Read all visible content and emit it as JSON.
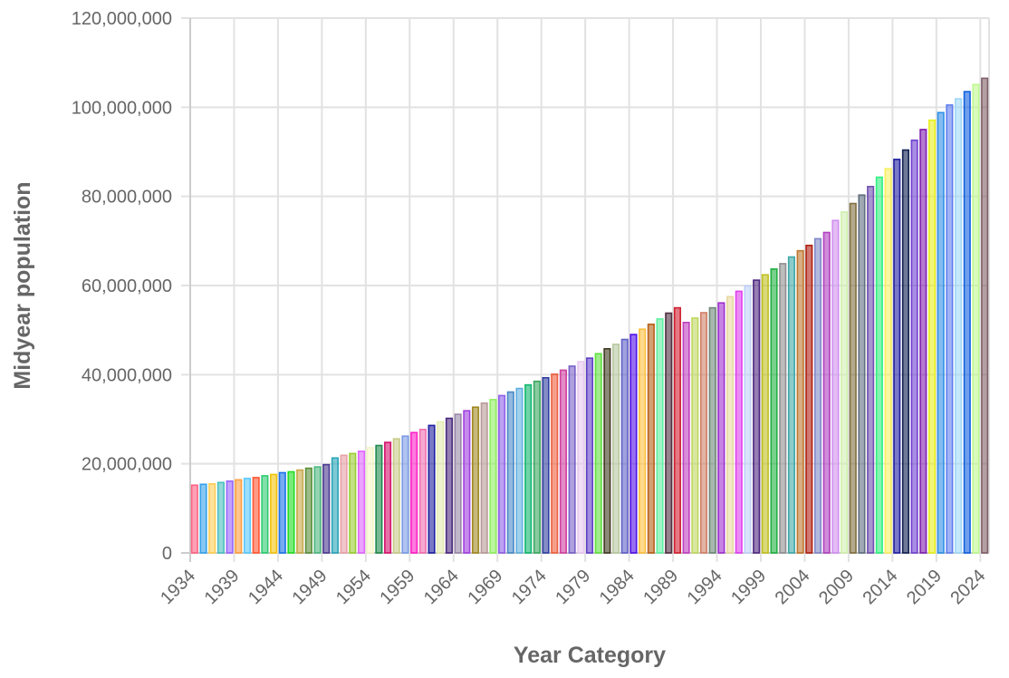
{
  "chart_data": {
    "type": "bar",
    "title": "",
    "xlabel": "Year Category",
    "ylabel": "Midyear population",
    "ylim": [
      0,
      120000000
    ],
    "y_ticks": [
      0,
      20000000,
      40000000,
      60000000,
      80000000,
      100000000,
      120000000
    ],
    "x_tick_every": 5,
    "grid": true,
    "legend": "none",
    "categories": [
      1934,
      1935,
      1936,
      1937,
      1938,
      1939,
      1940,
      1941,
      1942,
      1943,
      1944,
      1945,
      1946,
      1947,
      1948,
      1949,
      1950,
      1951,
      1952,
      1953,
      1954,
      1955,
      1956,
      1957,
      1958,
      1959,
      1960,
      1961,
      1962,
      1963,
      1964,
      1965,
      1966,
      1967,
      1968,
      1969,
      1970,
      1971,
      1972,
      1973,
      1974,
      1975,
      1976,
      1977,
      1978,
      1979,
      1980,
      1981,
      1982,
      1983,
      1984,
      1985,
      1986,
      1987,
      1988,
      1989,
      1990,
      1991,
      1992,
      1993,
      1994,
      1995,
      1996,
      1997,
      1998,
      1999,
      2000,
      2001,
      2002,
      2003,
      2004,
      2005,
      2006,
      2007,
      2008,
      2009,
      2010,
      2011,
      2012,
      2013,
      2014,
      2015,
      2016,
      2017,
      2018,
      2019,
      2020,
      2021,
      2022,
      2023,
      2024
    ],
    "values": [
      15200000,
      15400000,
      15500000,
      15800000,
      16100000,
      16400000,
      16700000,
      16900000,
      17300000,
      17600000,
      18000000,
      18200000,
      18600000,
      19000000,
      19300000,
      19800000,
      21300000,
      21900000,
      22300000,
      22800000,
      23600000,
      24100000,
      24800000,
      25600000,
      26200000,
      27000000,
      27700000,
      28600000,
      29400000,
      30200000,
      31100000,
      31900000,
      32700000,
      33600000,
      34400000,
      35300000,
      36100000,
      36900000,
      37700000,
      38500000,
      39300000,
      40100000,
      41000000,
      41900000,
      42900000,
      43700000,
      44700000,
      45800000,
      46800000,
      47900000,
      49000000,
      50200000,
      51300000,
      52500000,
      53800000,
      55000000,
      51700000,
      52700000,
      53900000,
      55000000,
      56100000,
      57500000,
      58700000,
      59900000,
      61200000,
      62400000,
      63700000,
      64900000,
      66400000,
      67800000,
      69000000,
      70500000,
      71900000,
      74600000,
      76500000,
      78400000,
      80300000,
      82200000,
      84300000,
      86200000,
      88300000,
      90400000,
      92600000,
      95000000,
      97100000,
      98800000,
      100500000,
      101900000,
      103500000,
      105100000,
      106500000
    ],
    "colors": [
      "#ff6384",
      "#36a2eb",
      "#ffcd56",
      "#4bc0c0",
      "#9966ff",
      "#ff9f40",
      "#5ac8fa",
      "#ff5733",
      "#2ecc71",
      "#f1c40f",
      "#1a73e8",
      "#22dd22",
      "#c9a94b",
      "#5a8f3a",
      "#4cb87f",
      "#4b3b8f",
      "#2aa5b8",
      "#e8a0a8",
      "#9acd32",
      "#e066ff",
      "#f5f5c8",
      "#1f8a4c",
      "#d4146e",
      "#c8cc88",
      "#7b9be8",
      "#ff1fc8",
      "#f070b0",
      "#2020a0",
      "#e4eab0",
      "#4b2a80",
      "#9a88a8",
      "#a040e0",
      "#a08820",
      "#b89a98",
      "#90ee60",
      "#9060e8",
      "#4a8ac8",
      "#60b0e0",
      "#10b870",
      "#3aa860",
      "#3040a0",
      "#ee6040",
      "#d040a0",
      "#7860c8",
      "#e8c8f0",
      "#6040c8",
      "#60e040",
      "#403a20",
      "#b8c8a0",
      "#6060c8",
      "#5010e8",
      "#ffc040",
      "#b86018",
      "#60f0a0",
      "#503040",
      "#d02030",
      "#c040c0",
      "#c0d860",
      "#d08068",
      "#708878",
      "#a030d0",
      "#e8d8a0",
      "#e040f0",
      "#c0d0f8",
      "#502880",
      "#c0c020",
      "#20b040",
      "#909090",
      "#40a8a8",
      "#c07830",
      "#b02010",
      "#8088c8",
      "#b040c0",
      "#d090f0",
      "#d0f0b0",
      "#807040",
      "#607080",
      "#7050b0",
      "#30f080",
      "#f8f060",
      "#2020a0",
      "#102050",
      "#7040d0",
      "#8020b0",
      "#e8f020",
      "#3090e8",
      "#6080f0",
      "#a0d8f8",
      "#1060e0",
      "#c0f890",
      "#806068"
    ]
  }
}
